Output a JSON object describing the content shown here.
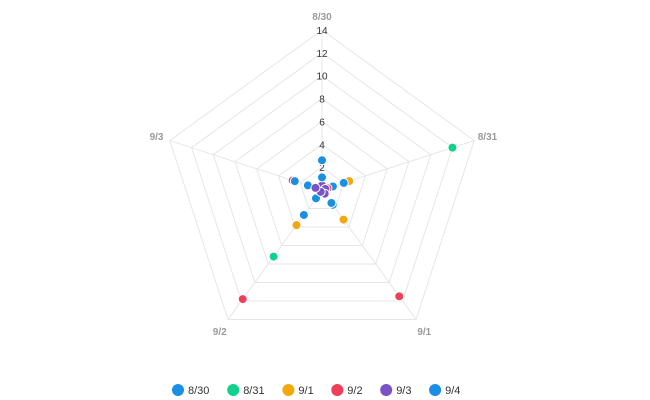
{
  "chart_data": {
    "type": "scatter",
    "subtype": "radar",
    "title": "",
    "axes": [
      "8/30",
      "8/31",
      "9/1",
      "9/2",
      "9/3"
    ],
    "ticks": [
      "2",
      "4",
      "6",
      "8",
      "10",
      "12",
      "14"
    ],
    "range": [
      0,
      14
    ],
    "grid": true,
    "legend_position": "bottom",
    "series": [
      {
        "name": "8/30",
        "color": "#1a8fe3",
        "values": [
          2.6,
          1.0,
          1.6,
          0.9,
          1.3
        ]
      },
      {
        "name": "8/31",
        "color": "#11d18c",
        "values": [
          0.2,
          12.0,
          3.3,
          7.2,
          0.4
        ]
      },
      {
        "name": "9/1",
        "color": "#f5a80e",
        "values": [
          0.1,
          2.5,
          3.2,
          3.8,
          0.3
        ]
      },
      {
        "name": "9/2",
        "color": "#ee4059",
        "values": [
          0.2,
          0.5,
          11.5,
          11.8,
          2.7
        ]
      },
      {
        "name": "9/3",
        "color": "#7a52c7",
        "values": [
          0.4,
          0.3,
          0.4,
          0.2,
          0.6
        ]
      },
      {
        "name": "9/4",
        "color": "#1a8fe3",
        "values": [
          1.1,
          2.0,
          1.4,
          2.7,
          2.5
        ]
      }
    ]
  }
}
